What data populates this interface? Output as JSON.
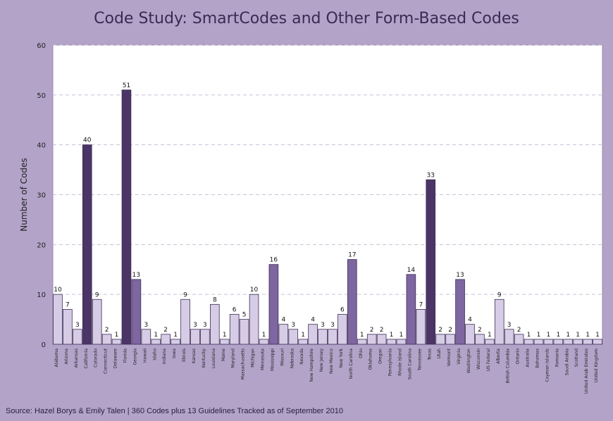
{
  "chart_data": {
    "type": "bar",
    "title": "Code Study: SmartCodes and Other Form-Based Codes",
    "ylabel": "Number of Codes",
    "xlabel": "",
    "ylim": [
      0,
      60
    ],
    "yticks": [
      0,
      10,
      20,
      30,
      40,
      50,
      60
    ],
    "grid": true,
    "categories": [
      "Alabama",
      "Arizona",
      "Arkansas",
      "California",
      "Colorado",
      "Connecticut",
      "Delaware",
      "Florida",
      "Georgia",
      "Hawaii",
      "Idaho",
      "Indiana",
      "Iowa",
      "Illinois",
      "Kansas",
      "Kentucky",
      "Louisiana",
      "Maine",
      "Maryland",
      "Massachusetts",
      "Michigan",
      "Minnesota",
      "Mississippi",
      "Missouri",
      "Nebraska",
      "Nevada",
      "New Hampshire",
      "New Jersey",
      "New Mexico",
      "New York",
      "North Carolina",
      "Ohio",
      "Oklahoma",
      "Oregon",
      "Pennsylvania",
      "Rhode Island",
      "South Carolina",
      "Tennessee",
      "Texas",
      "Utah",
      "Vermont",
      "Virginia",
      "Washington",
      "Wisconsin",
      "US Federal",
      "Alberta",
      "British Columbia",
      "Ontario",
      "Australia",
      "Bahamas",
      "Cayman Islands",
      "Romania",
      "Saudi Arabia",
      "Scotland",
      "United Arab Emirates",
      "United Kingdom"
    ],
    "values": [
      10,
      7,
      3,
      40,
      9,
      2,
      1,
      51,
      13,
      3,
      1,
      2,
      1,
      9,
      3,
      3,
      8,
      1,
      6,
      5,
      10,
      1,
      16,
      4,
      3,
      1,
      4,
      3,
      3,
      6,
      17,
      1,
      2,
      2,
      1,
      1,
      14,
      7,
      33,
      2,
      2,
      13,
      4,
      2,
      1,
      9,
      3,
      2,
      1,
      1,
      1,
      1,
      1,
      1,
      1,
      1
    ],
    "labels": [
      "10",
      "7",
      "3",
      "40",
      "9",
      "2",
      "1",
      "51",
      "13",
      "3",
      "1",
      "2",
      "1",
      "9",
      "3",
      "3",
      "8",
      "1",
      "6",
      "5",
      "10",
      "1",
      "16",
      "4",
      "3",
      "1",
      "4",
      "3",
      "3",
      "6",
      "17",
      "1",
      "2",
      "2",
      "1",
      "1",
      "14",
      "7",
      "33",
      "2",
      "2",
      "13",
      "4",
      "2",
      "1",
      "9",
      "3",
      "2",
      "1",
      "1",
      "1",
      "1",
      "1",
      "1",
      "1",
      "1"
    ],
    "colors": {
      "high": "#4b3566",
      "mid": "#7e66a0",
      "low": "#d6cce6",
      "stroke": "#3d2d55",
      "panel": "#ffffff",
      "frame": "#b3a3c9"
    },
    "source": "Source: Hazel Borys & Emily Talen | 360 Codes plus 13 Guidelines Tracked as of September 2010"
  }
}
